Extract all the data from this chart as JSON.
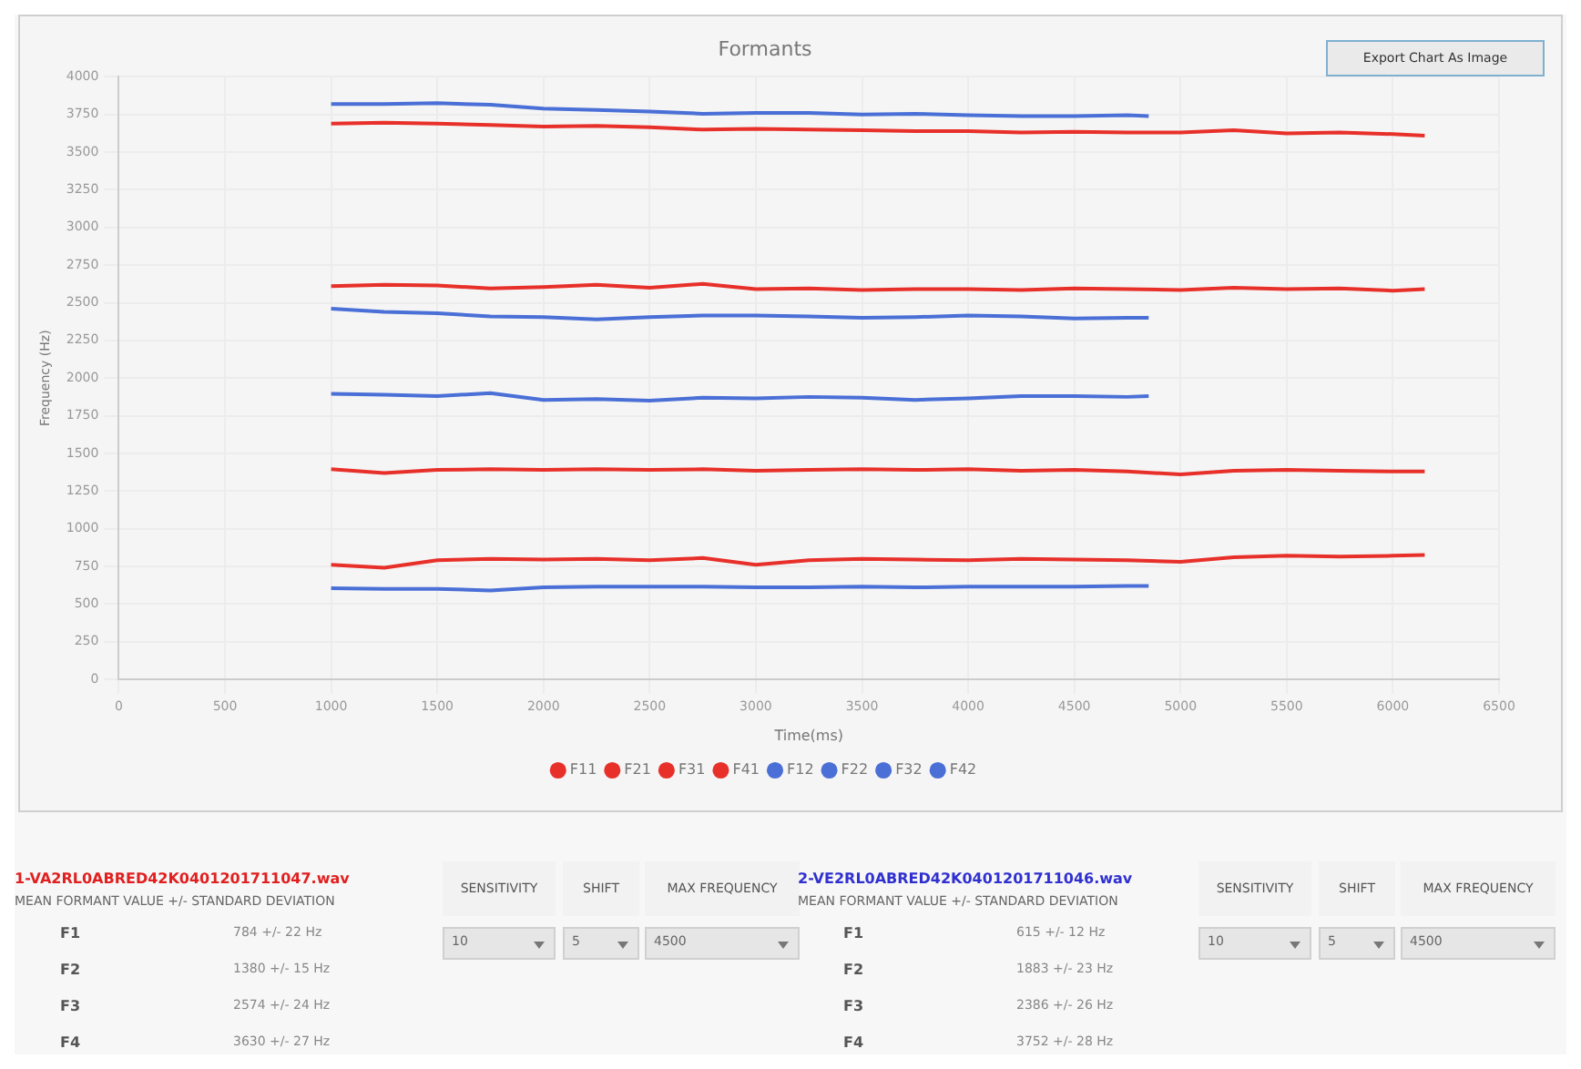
{
  "chart_data": {
    "type": "line",
    "title": "Formants",
    "xlabel": "Time(ms)",
    "ylabel": "Frequency (Hz)",
    "xlim": [
      0,
      6500
    ],
    "xticks": [
      0,
      500,
      1000,
      1500,
      2000,
      2500,
      3000,
      3500,
      4000,
      4500,
      5000,
      5500,
      6000,
      6500
    ],
    "ylim": [
      0,
      4000
    ],
    "yticks": [
      0,
      250,
      500,
      750,
      1000,
      1250,
      1500,
      1750,
      2000,
      2250,
      2500,
      2750,
      3000,
      3250,
      3500,
      3750,
      4000
    ],
    "grid": true,
    "legend": "bottom",
    "marker": "none",
    "line_style": "solid",
    "series": [
      {
        "name": "F11",
        "color": "#e8302a",
        "x": [
          1000,
          1250,
          1500,
          1750,
          2000,
          2250,
          2500,
          2750,
          3000,
          3250,
          3500,
          3750,
          4000,
          4250,
          4500,
          4750,
          5000,
          5250,
          5500,
          5750,
          6000,
          6150
        ],
        "values": [
          760,
          740,
          790,
          800,
          795,
          800,
          790,
          805,
          760,
          790,
          800,
          795,
          790,
          800,
          795,
          790,
          780,
          810,
          820,
          815,
          820,
          825
        ]
      },
      {
        "name": "F21",
        "color": "#e8302a",
        "x": [
          1000,
          1250,
          1500,
          1750,
          2000,
          2250,
          2500,
          2750,
          3000,
          3250,
          3500,
          3750,
          4000,
          4250,
          4500,
          4750,
          5000,
          5250,
          5500,
          5750,
          6000,
          6150
        ],
        "values": [
          1395,
          1370,
          1390,
          1395,
          1390,
          1395,
          1390,
          1395,
          1385,
          1390,
          1395,
          1390,
          1395,
          1385,
          1390,
          1380,
          1360,
          1385,
          1390,
          1385,
          1380,
          1380
        ]
      },
      {
        "name": "F31",
        "color": "#e8302a",
        "x": [
          1000,
          1250,
          1500,
          1750,
          2000,
          2250,
          2500,
          2750,
          3000,
          3250,
          3500,
          3750,
          4000,
          4250,
          4500,
          4750,
          5000,
          5250,
          5500,
          5750,
          6000,
          6150
        ],
        "values": [
          2610,
          2620,
          2615,
          2595,
          2605,
          2620,
          2600,
          2625,
          2590,
          2595,
          2585,
          2590,
          2590,
          2585,
          2595,
          2590,
          2585,
          2600,
          2590,
          2595,
          2580,
          2590
        ]
      },
      {
        "name": "F41",
        "color": "#e8302a",
        "x": [
          1000,
          1250,
          1500,
          1750,
          2000,
          2250,
          2500,
          2750,
          3000,
          3250,
          3500,
          3750,
          4000,
          4250,
          4500,
          4750,
          5000,
          5250,
          5500,
          5750,
          6000,
          6150
        ],
        "values": [
          3690,
          3695,
          3690,
          3680,
          3670,
          3675,
          3665,
          3650,
          3655,
          3650,
          3645,
          3640,
          3640,
          3630,
          3635,
          3630,
          3630,
          3645,
          3625,
          3630,
          3620,
          3610
        ]
      },
      {
        "name": "F12",
        "color": "#4a6fd6",
        "x": [
          1000,
          1250,
          1500,
          1750,
          2000,
          2250,
          2500,
          2750,
          3000,
          3250,
          3500,
          3750,
          4000,
          4250,
          4500,
          4750,
          4850
        ],
        "values": [
          605,
          600,
          600,
          590,
          610,
          615,
          615,
          615,
          610,
          610,
          615,
          610,
          615,
          615,
          615,
          620,
          620
        ]
      },
      {
        "name": "F22",
        "color": "#4a6fd6",
        "x": [
          1000,
          1250,
          1500,
          1750,
          2000,
          2250,
          2500,
          2750,
          3000,
          3250,
          3500,
          3750,
          4000,
          4250,
          4500,
          4750,
          4850
        ],
        "values": [
          1895,
          1890,
          1880,
          1900,
          1855,
          1860,
          1850,
          1870,
          1865,
          1875,
          1870,
          1855,
          1865,
          1880,
          1880,
          1875,
          1880
        ]
      },
      {
        "name": "F32",
        "color": "#4a6fd6",
        "x": [
          1000,
          1250,
          1500,
          1750,
          2000,
          2250,
          2500,
          2750,
          3000,
          3250,
          3500,
          3750,
          4000,
          4250,
          4500,
          4750,
          4850
        ],
        "values": [
          2460,
          2440,
          2430,
          2410,
          2405,
          2390,
          2405,
          2415,
          2415,
          2410,
          2400,
          2405,
          2415,
          2410,
          2395,
          2400,
          2400
        ]
      },
      {
        "name": "F42",
        "color": "#4a6fd6",
        "x": [
          1000,
          1250,
          1500,
          1750,
          2000,
          2250,
          2500,
          2750,
          3000,
          3250,
          3500,
          3750,
          4000,
          4250,
          4500,
          4750,
          4850
        ],
        "values": [
          3820,
          3820,
          3825,
          3815,
          3790,
          3780,
          3770,
          3755,
          3760,
          3760,
          3750,
          3755,
          3745,
          3740,
          3740,
          3745,
          3740
        ]
      }
    ],
    "annotations": [
      "Export Chart As Image",
      "1-VA2RL0ABRED42K0401201711047.wav",
      "MEAN FORMANT VALUE +/- STANDARD DEVIATION",
      "F1",
      "784 +/- 22 Hz",
      "F2",
      "1380 +/- 15 Hz",
      "F3",
      "2574 +/- 24 Hz",
      "F4",
      "3630 +/- 27 Hz",
      "SENSITIVITY",
      "SHIFT",
      "MAX FREQUENCY",
      "10",
      "5",
      "4500",
      "2-VE2RL0ABRED42K0401201711046.wav",
      "MEAN FORMANT VALUE +/- STANDARD DEVIATION",
      "F1",
      "615 +/- 12 Hz",
      "F2",
      "1883 +/- 23 Hz",
      "F3",
      "2386 +/- 26 Hz",
      "F4",
      "3752 +/- 28 Hz",
      "SENSITIVITY",
      "SHIFT",
      "MAX FREQUENCY",
      "10",
      "5",
      "4500"
    ]
  }
}
